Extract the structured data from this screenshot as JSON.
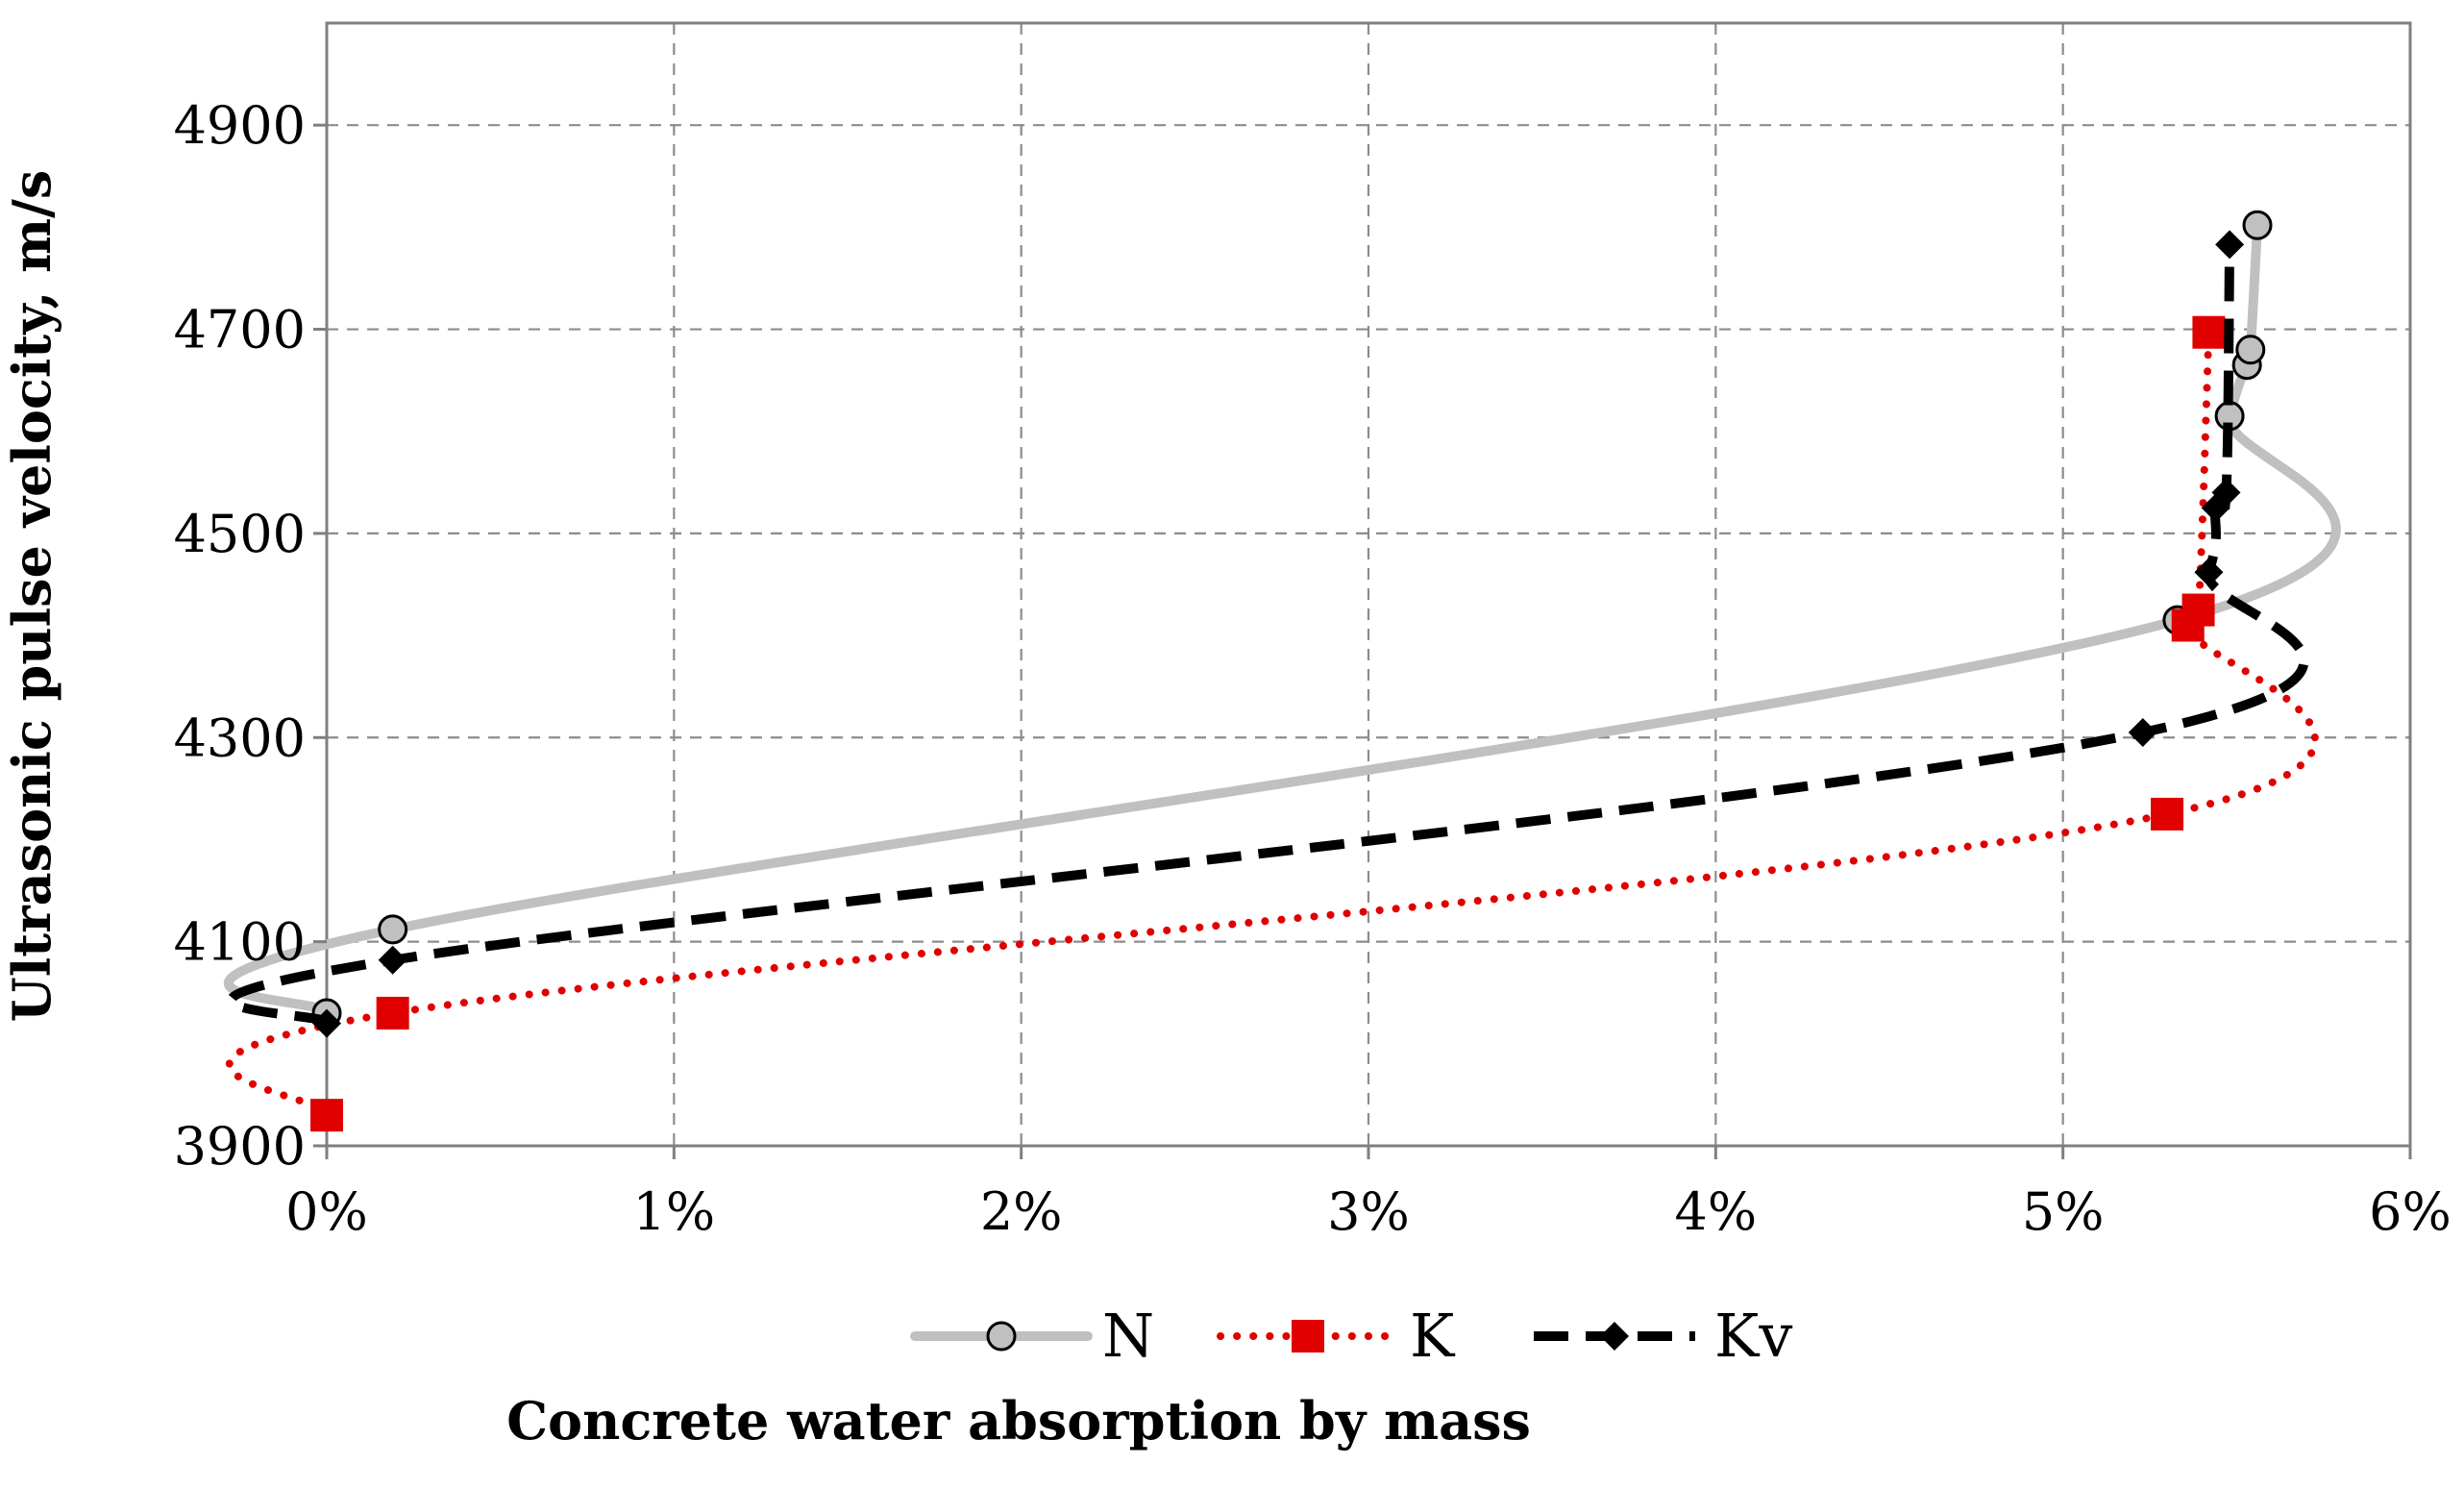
{
  "chart_data": {
    "type": "line",
    "title": "",
    "xlabel": "Concrete water absorption by mass",
    "ylabel": "Ultrasonic pulse velocity,  m/s",
    "xlim": [
      0,
      6
    ],
    "ylim": [
      3900,
      5000
    ],
    "x_ticks": [
      0,
      1,
      2,
      3,
      4,
      5,
      6
    ],
    "x_tick_labels": [
      "0%",
      "1%",
      "2%",
      "3%",
      "4%",
      "5%",
      "6%"
    ],
    "y_ticks": [
      3900,
      4100,
      4300,
      4500,
      4700,
      4900
    ],
    "y_tick_labels": [
      "3900",
      "4100",
      "4300",
      "4500",
      "4700",
      "4900"
    ],
    "grid": true,
    "legend_position": "bottom",
    "series": [
      {
        "name": "N",
        "color": "#c0c0c0",
        "line_style": "solid",
        "marker": "circle",
        "x": [
          0.0,
          0.19,
          5.33,
          5.48,
          5.53,
          5.54,
          5.56
        ],
        "y": [
          4030,
          4112,
          4415,
          4615,
          4665,
          4680,
          4802
        ]
      },
      {
        "name": "K",
        "color": "#e00000",
        "line_style": "dotted",
        "marker": "square",
        "x": [
          0.0,
          0.19,
          5.3,
          5.36,
          5.39,
          5.42
        ],
        "y": [
          3930,
          4030,
          4225,
          4410,
          4425,
          4697
        ]
      },
      {
        "name": "Kv",
        "color": "#000000",
        "line_style": "dashed",
        "marker": "diamond",
        "x": [
          0.0,
          0.19,
          5.23,
          5.42,
          5.44,
          5.47,
          5.48
        ],
        "y": [
          4020,
          4082,
          4305,
          4462,
          4525,
          4540,
          4783
        ]
      }
    ]
  }
}
